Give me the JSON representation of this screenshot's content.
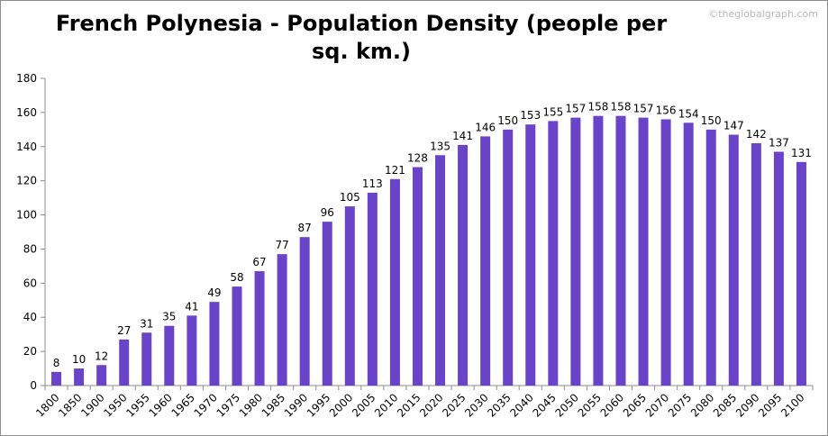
{
  "chart_data": {
    "type": "bar",
    "title": "French Polynesia - Population Density (people per sq. km.)",
    "watermark": "©theglobalgraph.com",
    "xlabel": "",
    "ylabel": "",
    "ylim": [
      0,
      180
    ],
    "yticks": [
      0,
      20,
      40,
      60,
      80,
      100,
      120,
      140,
      160,
      180
    ],
    "grid": false,
    "legend": "none",
    "bar_color": "#6a44c8",
    "categories": [
      "1800",
      "1850",
      "1900",
      "1950",
      "1955",
      "1960",
      "1965",
      "1970",
      "1975",
      "1980",
      "1985",
      "1990",
      "1995",
      "2000",
      "2005",
      "2010",
      "2015",
      "2020",
      "2025",
      "2030",
      "2035",
      "2040",
      "2045",
      "2050",
      "2055",
      "2060",
      "2065",
      "2070",
      "2075",
      "2080",
      "2085",
      "2090",
      "2095",
      "2100"
    ],
    "values": [
      8,
      10,
      12,
      27,
      31,
      35,
      41,
      49,
      58,
      67,
      77,
      87,
      96,
      105,
      113,
      121,
      128,
      135,
      141,
      146,
      150,
      153,
      155,
      157,
      158,
      158,
      157,
      156,
      154,
      150,
      147,
      142,
      137,
      131
    ],
    "labels": [
      "8",
      "10",
      "12",
      "27",
      "31",
      "35",
      "41",
      "49",
      "58",
      "67",
      "77",
      "87",
      "96",
      "105",
      "113",
      "121",
      "128",
      "135",
      "141",
      "146",
      "150",
      "153",
      "155",
      "157",
      "158",
      "158",
      "157",
      "156",
      "154",
      "150",
      "147",
      "142",
      "137",
      "131"
    ]
  }
}
